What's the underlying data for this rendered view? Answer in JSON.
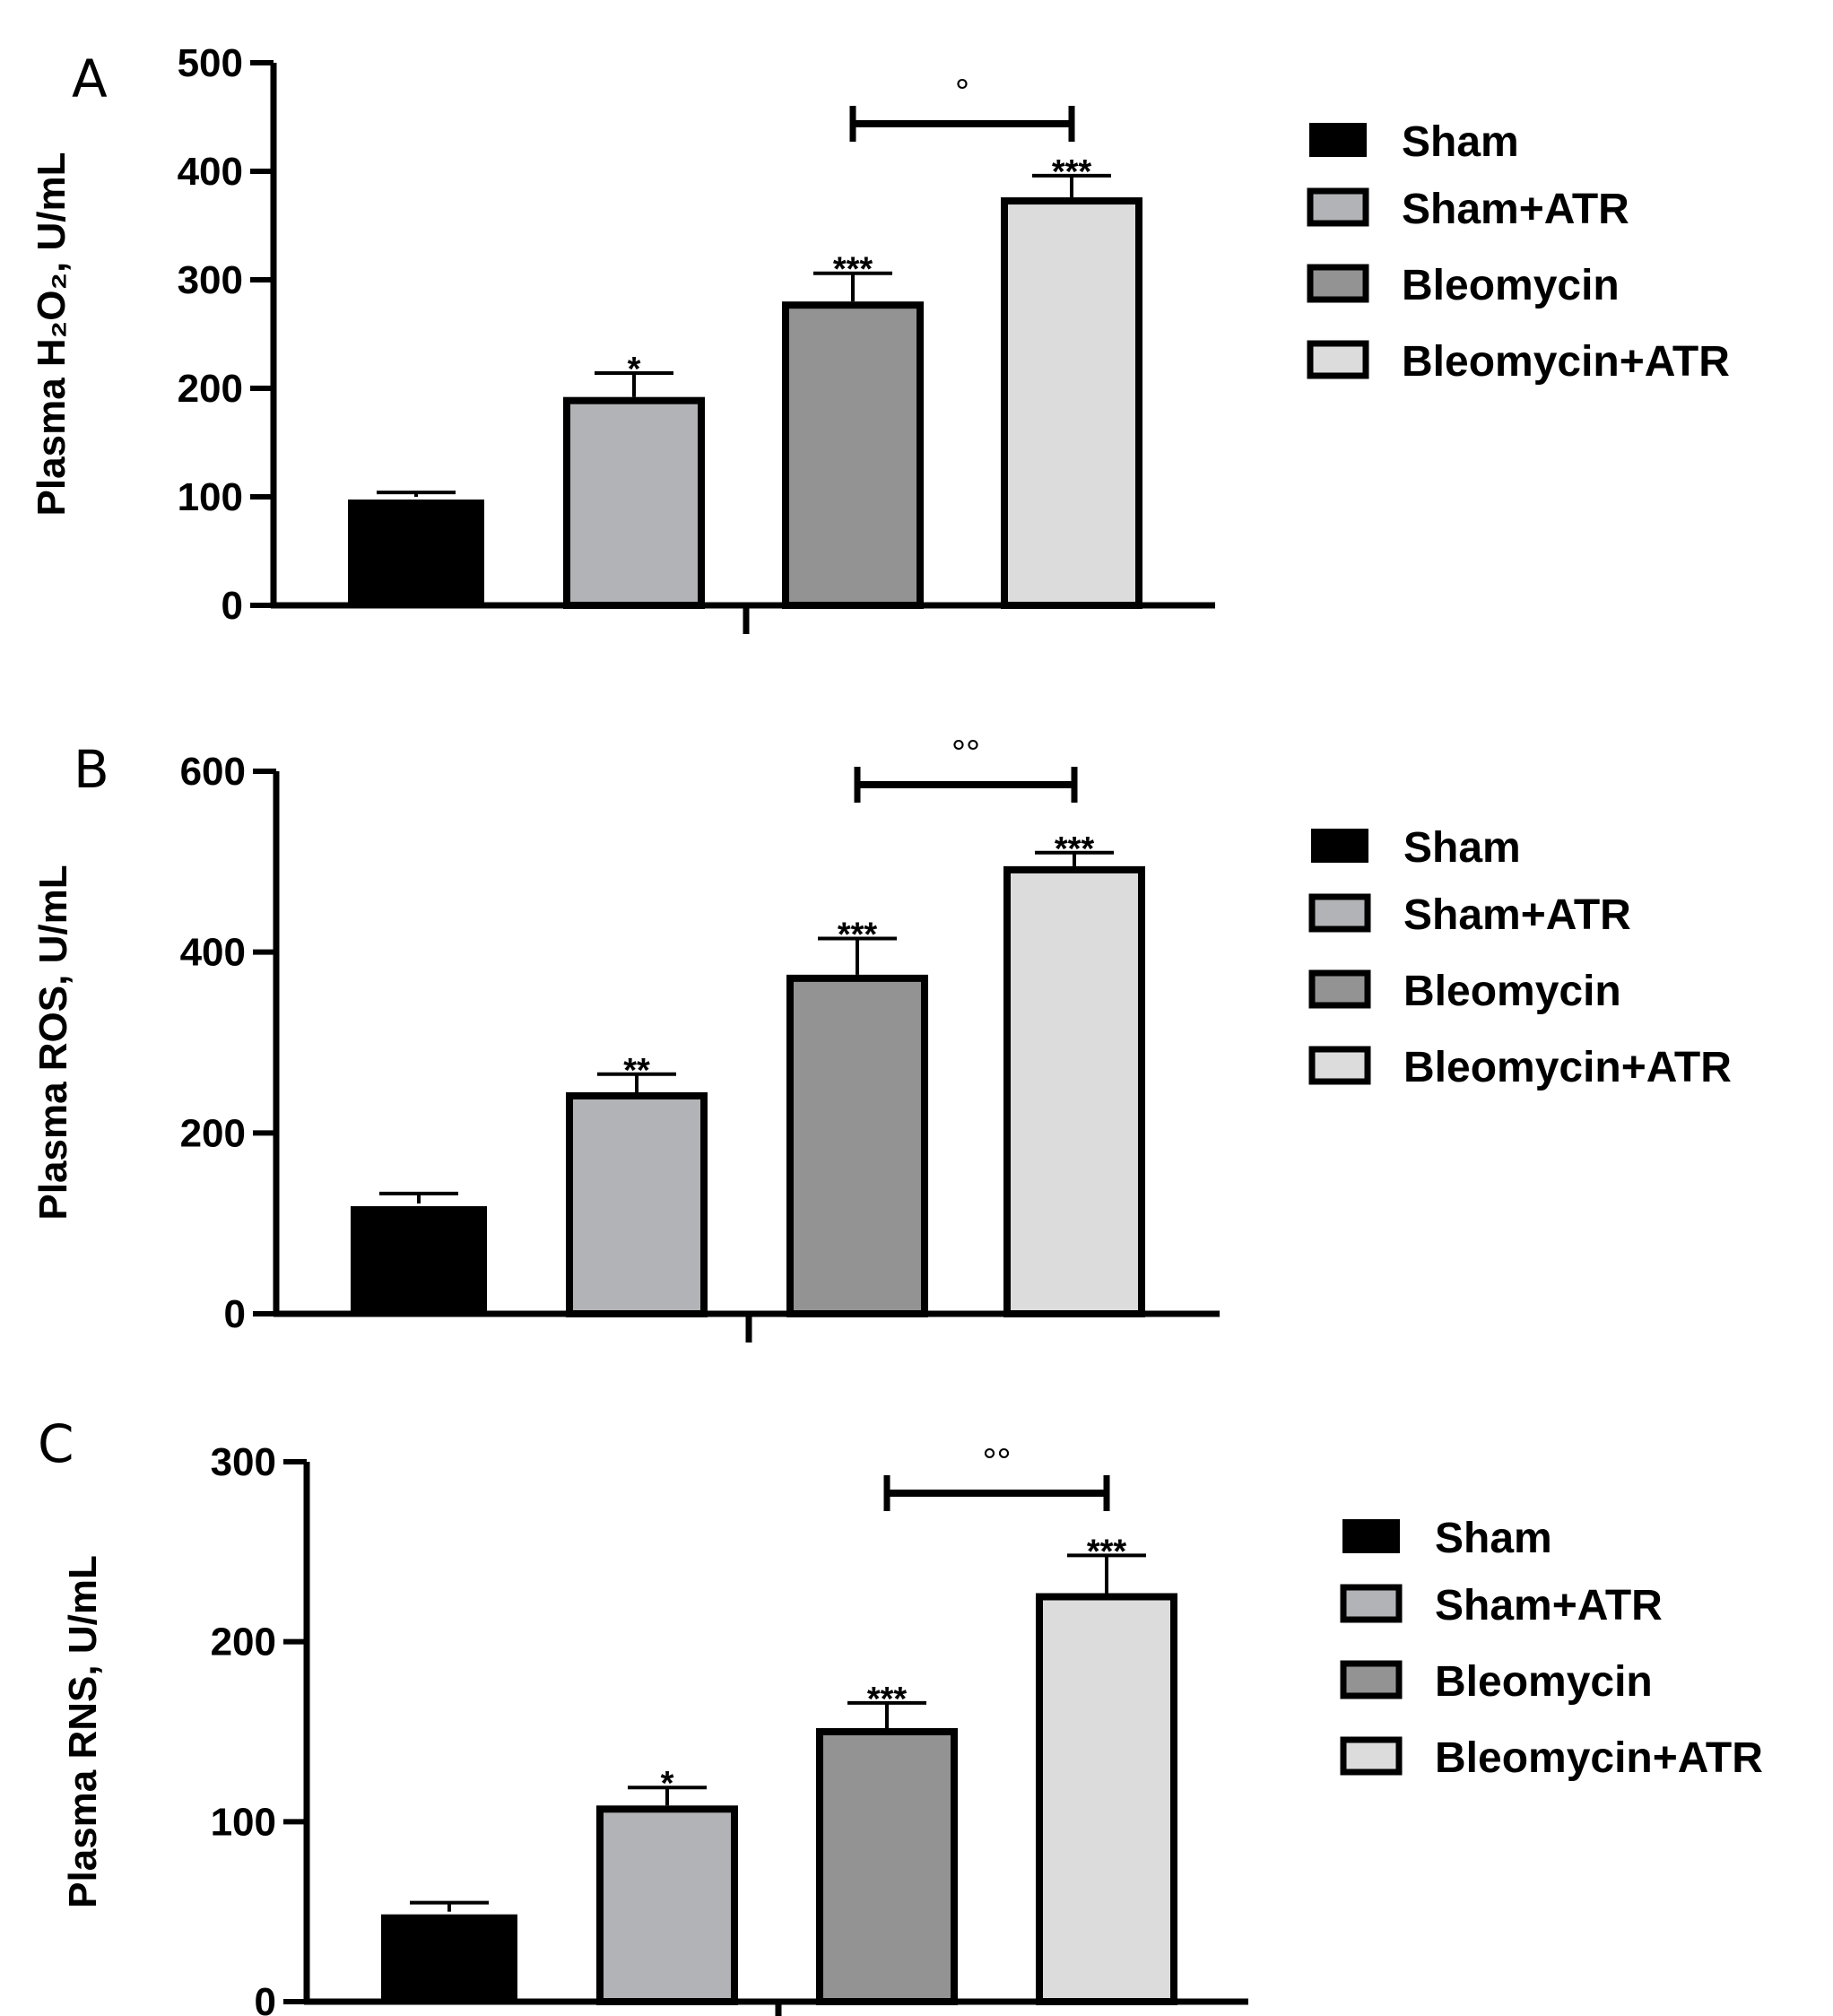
{
  "chart_data": [
    {
      "type": "bar",
      "panel": "A",
      "ylabel": "Plasma H₂O₂, U/mL",
      "ylim": [
        0,
        500
      ],
      "yticks": [
        0,
        100,
        200,
        300,
        400,
        500
      ],
      "categories": [
        "Sham",
        "Sham+ATR",
        "Bleomycin",
        "Bleomycin+ATR"
      ],
      "values": [
        100,
        192,
        280,
        376
      ],
      "errors": [
        4,
        22,
        26,
        20
      ],
      "significance": [
        "",
        "*",
        "***",
        "***"
      ],
      "comparison": {
        "from": "Bleomycin",
        "to": "Bleomycin+ATR",
        "label": "°"
      },
      "legend": [
        "Sham",
        "Sham+ATR",
        "Bleomycin",
        "Bleomycin+ATR"
      ],
      "legend_position": "right",
      "grid": false
    },
    {
      "type": "bar",
      "panel": "B",
      "ylabel": "Plasma ROS, U/mL",
      "ylim": [
        0,
        600
      ],
      "yticks": [
        0,
        200,
        400,
        600
      ],
      "categories": [
        "Sham",
        "Sham+ATR",
        "Bleomycin",
        "Bleomycin+ATR"
      ],
      "values": [
        122,
        245,
        375,
        495
      ],
      "errors": [
        11,
        20,
        40,
        15
      ],
      "significance": [
        "",
        "**",
        "***",
        "***"
      ],
      "comparison": {
        "from": "Bleomycin",
        "to": "Bleomycin+ATR",
        "label": "°°"
      },
      "legend": [
        "Sham",
        "Sham+ATR",
        "Bleomycin",
        "Bleomycin+ATR"
      ],
      "legend_position": "right",
      "grid": false
    },
    {
      "type": "bar",
      "panel": "C",
      "ylabel": "Plasma RNS, U/mL",
      "ylim": [
        0,
        300
      ],
      "yticks": [
        0,
        100,
        200,
        300
      ],
      "categories": [
        "Sham",
        "Sham+ATR",
        "Bleomycin",
        "Bleomycin+ATR"
      ],
      "values": [
        50,
        109,
        152,
        227
      ],
      "errors": [
        5,
        10,
        14,
        21
      ],
      "significance": [
        "",
        "*",
        "***",
        "***"
      ],
      "comparison": {
        "from": "Bleomycin",
        "to": "Bleomycin+ATR",
        "label": "°°"
      },
      "legend": [
        "Sham",
        "Sham+ATR",
        "Bleomycin",
        "Bleomycin+ATR"
      ],
      "legend_position": "right",
      "grid": false
    }
  ],
  "colors": {
    "Sham": "#000000",
    "Sham+ATR": "#b2b3b6",
    "Bleomycin": "#939393",
    "Bleomycin+ATR": "#dcdcdc",
    "outline": "#000000"
  }
}
